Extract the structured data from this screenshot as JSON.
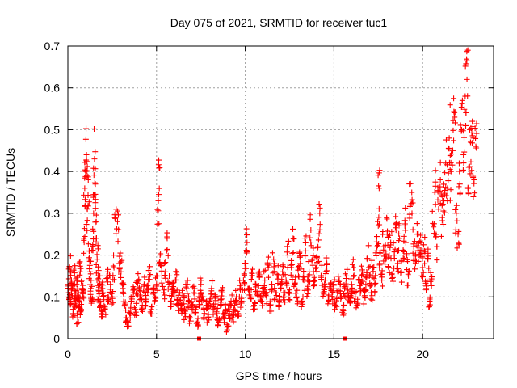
{
  "chart_data": {
    "type": "scatter",
    "title": "Day 075 of 2021, SRMTID for receiver tuc1",
    "xlabel": "GPS time / hours",
    "ylabel": "SRMTID / TECUs",
    "xlim": [
      0,
      24
    ],
    "ylim": [
      0,
      0.7
    ],
    "x_ticks": [
      0,
      5,
      10,
      15,
      20
    ],
    "x_tick_labels": [
      "0",
      "5",
      "10",
      "15",
      "20"
    ],
    "y_ticks": [
      0,
      0.1,
      0.2,
      0.3,
      0.4,
      0.5,
      0.6,
      0.7
    ],
    "y_tick_labels": [
      "0",
      "0.1",
      "0.2",
      "0.3",
      "0.4",
      "0.5",
      "0.6",
      "0.7"
    ],
    "grid": true,
    "marker": "+",
    "color": "#ff0000",
    "series": [
      {
        "name": "SRMTID",
        "points": [
          [
            0.0,
            0.13
          ],
          [
            0.05,
            0.11
          ],
          [
            0.1,
            0.17
          ],
          [
            0.15,
            0.09
          ],
          [
            0.2,
            0.14
          ],
          [
            0.25,
            0.12
          ],
          [
            0.3,
            0.06
          ],
          [
            0.35,
            0.15
          ],
          [
            0.4,
            0.1
          ],
          [
            0.45,
            0.08
          ],
          [
            0.5,
            0.13
          ],
          [
            0.55,
            0.05
          ],
          [
            0.6,
            0.11
          ],
          [
            0.65,
            0.09
          ],
          [
            0.7,
            0.16
          ],
          [
            0.75,
            0.07
          ],
          [
            0.8,
            0.12
          ],
          [
            0.85,
            0.1
          ],
          [
            0.9,
            0.24
          ],
          [
            0.95,
            0.36
          ],
          [
            1.0,
            0.4
          ],
          [
            1.05,
            0.44
          ],
          [
            1.1,
            0.31
          ],
          [
            1.15,
            0.38
          ],
          [
            1.2,
            0.21
          ],
          [
            1.25,
            0.16
          ],
          [
            1.3,
            0.12
          ],
          [
            1.35,
            0.09
          ],
          [
            1.4,
            0.22
          ],
          [
            1.45,
            0.3
          ],
          [
            1.5,
            0.43
          ],
          [
            1.55,
            0.37
          ],
          [
            1.6,
            0.28
          ],
          [
            1.65,
            0.19
          ],
          [
            1.7,
            0.15
          ],
          [
            1.75,
            0.1
          ],
          [
            1.8,
            0.13
          ],
          [
            1.85,
            0.08
          ],
          [
            1.9,
            0.06
          ],
          [
            1.95,
            0.12
          ],
          [
            2.0,
            0.11
          ],
          [
            2.1,
            0.07
          ],
          [
            2.2,
            0.15
          ],
          [
            2.3,
            0.09
          ],
          [
            2.4,
            0.13
          ],
          [
            2.5,
            0.1
          ],
          [
            2.6,
            0.17
          ],
          [
            2.7,
            0.29
          ],
          [
            2.8,
            0.28
          ],
          [
            2.9,
            0.18
          ],
          [
            3.0,
            0.16
          ],
          [
            3.1,
            0.12
          ],
          [
            3.2,
            0.08
          ],
          [
            3.3,
            0.05
          ],
          [
            3.4,
            0.04
          ],
          [
            3.5,
            0.06
          ],
          [
            3.6,
            0.09
          ],
          [
            3.7,
            0.11
          ],
          [
            3.8,
            0.07
          ],
          [
            3.9,
            0.12
          ],
          [
            4.0,
            0.14
          ],
          [
            4.1,
            0.1
          ],
          [
            4.2,
            0.08
          ],
          [
            4.3,
            0.13
          ],
          [
            4.4,
            0.09
          ],
          [
            4.5,
            0.11
          ],
          [
            4.6,
            0.15
          ],
          [
            4.7,
            0.07
          ],
          [
            4.8,
            0.12
          ],
          [
            4.9,
            0.1
          ],
          [
            5.0,
            0.13
          ],
          [
            5.1,
            0.33
          ],
          [
            5.15,
            0.41
          ],
          [
            5.2,
            0.2
          ],
          [
            5.3,
            0.15
          ],
          [
            5.4,
            0.11
          ],
          [
            5.5,
            0.16
          ],
          [
            5.6,
            0.24
          ],
          [
            5.7,
            0.13
          ],
          [
            5.8,
            0.09
          ],
          [
            5.9,
            0.12
          ],
          [
            6.0,
            0.1
          ],
          [
            6.1,
            0.14
          ],
          [
            6.2,
            0.08
          ],
          [
            6.3,
            0.11
          ],
          [
            6.4,
            0.07
          ],
          [
            6.5,
            0.1
          ],
          [
            6.6,
            0.06
          ],
          [
            6.7,
            0.12
          ],
          [
            6.8,
            0.09
          ],
          [
            6.9,
            0.05
          ],
          [
            7.0,
            0.08
          ],
          [
            7.1,
            0.11
          ],
          [
            7.2,
            0.07
          ],
          [
            7.3,
            0.04
          ],
          [
            7.4,
            0.09
          ],
          [
            7.5,
            0.13
          ],
          [
            7.6,
            0.1
          ],
          [
            7.7,
            0.06
          ],
          [
            7.8,
            0.08
          ],
          [
            7.9,
            0.05
          ],
          [
            8.0,
            0.09
          ],
          [
            8.1,
            0.12
          ],
          [
            8.2,
            0.07
          ],
          [
            8.3,
            0.1
          ],
          [
            8.4,
            0.06
          ],
          [
            8.5,
            0.04
          ],
          [
            8.6,
            0.08
          ],
          [
            8.7,
            0.11
          ],
          [
            8.8,
            0.05
          ],
          [
            8.9,
            0.07
          ],
          [
            9.0,
            0.03
          ],
          [
            9.1,
            0.06
          ],
          [
            9.2,
            0.09
          ],
          [
            9.3,
            0.05
          ],
          [
            9.4,
            0.08
          ],
          [
            9.5,
            0.1
          ],
          [
            9.6,
            0.06
          ],
          [
            9.7,
            0.12
          ],
          [
            9.8,
            0.09
          ],
          [
            9.9,
            0.14
          ],
          [
            10.0,
            0.18
          ],
          [
            10.1,
            0.23
          ],
          [
            10.2,
            0.12
          ],
          [
            10.3,
            0.1
          ],
          [
            10.4,
            0.15
          ],
          [
            10.5,
            0.08
          ],
          [
            10.6,
            0.13
          ],
          [
            10.7,
            0.11
          ],
          [
            10.8,
            0.16
          ],
          [
            10.9,
            0.09
          ],
          [
            11.0,
            0.12
          ],
          [
            11.1,
            0.14
          ],
          [
            11.2,
            0.1
          ],
          [
            11.3,
            0.17
          ],
          [
            11.4,
            0.08
          ],
          [
            11.5,
            0.13
          ],
          [
            11.6,
            0.19
          ],
          [
            11.7,
            0.11
          ],
          [
            11.8,
            0.15
          ],
          [
            11.9,
            0.09
          ],
          [
            12.0,
            0.12
          ],
          [
            12.1,
            0.16
          ],
          [
            12.2,
            0.1
          ],
          [
            12.3,
            0.14
          ],
          [
            12.4,
            0.2
          ],
          [
            12.5,
            0.11
          ],
          [
            12.6,
            0.17
          ],
          [
            12.7,
            0.24
          ],
          [
            12.8,
            0.13
          ],
          [
            12.9,
            0.1
          ],
          [
            13.0,
            0.15
          ],
          [
            13.1,
            0.18
          ],
          [
            13.2,
            0.09
          ],
          [
            13.3,
            0.14
          ],
          [
            13.4,
            0.21
          ],
          [
            13.5,
            0.12
          ],
          [
            13.6,
            0.16
          ],
          [
            13.7,
            0.26
          ],
          [
            13.8,
            0.19
          ],
          [
            13.9,
            0.13
          ],
          [
            14.0,
            0.17
          ],
          [
            14.1,
            0.22
          ],
          [
            14.2,
            0.3
          ],
          [
            14.3,
            0.15
          ],
          [
            14.4,
            0.11
          ],
          [
            14.5,
            0.14
          ],
          [
            14.6,
            0.18
          ],
          [
            14.7,
            0.09
          ],
          [
            14.8,
            0.12
          ],
          [
            14.9,
            0.1
          ],
          [
            15.0,
            0.13
          ],
          [
            15.1,
            0.08
          ],
          [
            15.2,
            0.11
          ],
          [
            15.3,
            0.14
          ],
          [
            15.4,
            0.1
          ],
          [
            15.5,
            0.07
          ],
          [
            15.6,
            0.12
          ],
          [
            15.7,
            0.15
          ],
          [
            15.8,
            0.11
          ],
          [
            15.9,
            0.09
          ],
          [
            16.0,
            0.13
          ],
          [
            16.1,
            0.17
          ],
          [
            16.2,
            0.1
          ],
          [
            16.3,
            0.08
          ],
          [
            16.4,
            0.14
          ],
          [
            16.5,
            0.12
          ],
          [
            16.6,
            0.16
          ],
          [
            16.7,
            0.1
          ],
          [
            16.8,
            0.13
          ],
          [
            16.9,
            0.19
          ],
          [
            17.0,
            0.15
          ],
          [
            17.1,
            0.11
          ],
          [
            17.2,
            0.17
          ],
          [
            17.3,
            0.13
          ],
          [
            17.4,
            0.21
          ],
          [
            17.5,
            0.27
          ],
          [
            17.55,
            0.36
          ],
          [
            17.6,
            0.18
          ],
          [
            17.7,
            0.14
          ],
          [
            17.8,
            0.22
          ],
          [
            17.9,
            0.19
          ],
          [
            18.0,
            0.25
          ],
          [
            18.1,
            0.17
          ],
          [
            18.2,
            0.23
          ],
          [
            18.3,
            0.15
          ],
          [
            18.4,
            0.2
          ],
          [
            18.5,
            0.26
          ],
          [
            18.6,
            0.18
          ],
          [
            18.7,
            0.24
          ],
          [
            18.8,
            0.16
          ],
          [
            18.9,
            0.21
          ],
          [
            19.0,
            0.27
          ],
          [
            19.1,
            0.2
          ],
          [
            19.2,
            0.15
          ],
          [
            19.3,
            0.32
          ],
          [
            19.4,
            0.3
          ],
          [
            19.5,
            0.22
          ],
          [
            19.6,
            0.18
          ],
          [
            19.7,
            0.25
          ],
          [
            19.8,
            0.2
          ],
          [
            19.9,
            0.23
          ],
          [
            20.0,
            0.17
          ],
          [
            20.1,
            0.21
          ],
          [
            20.2,
            0.12
          ],
          [
            20.3,
            0.19
          ],
          [
            20.4,
            0.09
          ],
          [
            20.5,
            0.14
          ],
          [
            20.6,
            0.27
          ],
          [
            20.7,
            0.35
          ],
          [
            20.8,
            0.22
          ],
          [
            20.9,
            0.31
          ],
          [
            21.0,
            0.38
          ],
          [
            21.1,
            0.29
          ],
          [
            21.2,
            0.33
          ],
          [
            21.3,
            0.42
          ],
          [
            21.4,
            0.36
          ],
          [
            21.5,
            0.48
          ],
          [
            21.6,
            0.4
          ],
          [
            21.7,
            0.45
          ],
          [
            21.8,
            0.53
          ],
          [
            21.9,
            0.3
          ],
          [
            22.0,
            0.25
          ],
          [
            22.1,
            0.37
          ],
          [
            22.2,
            0.5
          ],
          [
            22.3,
            0.44
          ],
          [
            22.4,
            0.58
          ],
          [
            22.5,
            0.62
          ],
          [
            22.55,
            0.69
          ],
          [
            22.6,
            0.41
          ],
          [
            22.7,
            0.47
          ],
          [
            22.8,
            0.52
          ],
          [
            22.9,
            0.38
          ],
          [
            23.0,
            0.46
          ]
        ]
      }
    ],
    "baseline_marks": [
      [
        7.4,
        0
      ],
      [
        15.6,
        0
      ]
    ]
  }
}
